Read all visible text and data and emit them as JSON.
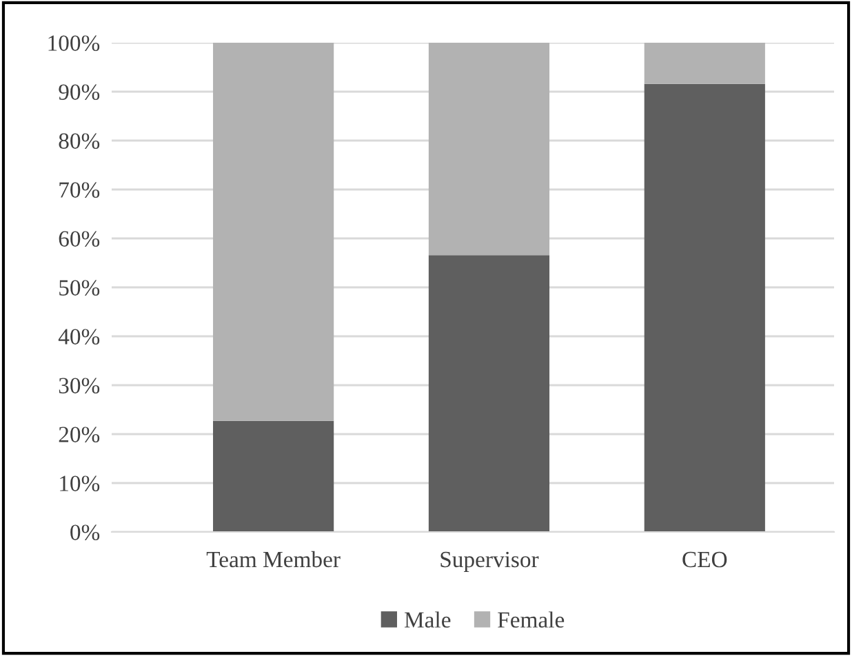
{
  "chart_data": {
    "type": "bar",
    "stacked": true,
    "categories": [
      "Team Member",
      "Supervisor",
      "CEO"
    ],
    "series": [
      {
        "name": "Male",
        "color": "#5f5f5f",
        "values": [
          22.7,
          56.6,
          91.6
        ]
      },
      {
        "name": "Female",
        "color": "#b2b2b2",
        "values": [
          77.3,
          43.4,
          8.4
        ]
      }
    ],
    "ylim": [
      0,
      100
    ],
    "yticks": [
      {
        "value": 0,
        "label": "0%"
      },
      {
        "value": 10,
        "label": "10%"
      },
      {
        "value": 20,
        "label": "20%"
      },
      {
        "value": 30,
        "label": "30%"
      },
      {
        "value": 40,
        "label": "40%"
      },
      {
        "value": 50,
        "label": "50%"
      },
      {
        "value": 60,
        "label": "60%"
      },
      {
        "value": 70,
        "label": "70%"
      },
      {
        "value": 80,
        "label": "80%"
      },
      {
        "value": 90,
        "label": "90%"
      },
      {
        "value": 100,
        "label": "100%"
      }
    ],
    "grid": "y",
    "legend": "bottom"
  }
}
